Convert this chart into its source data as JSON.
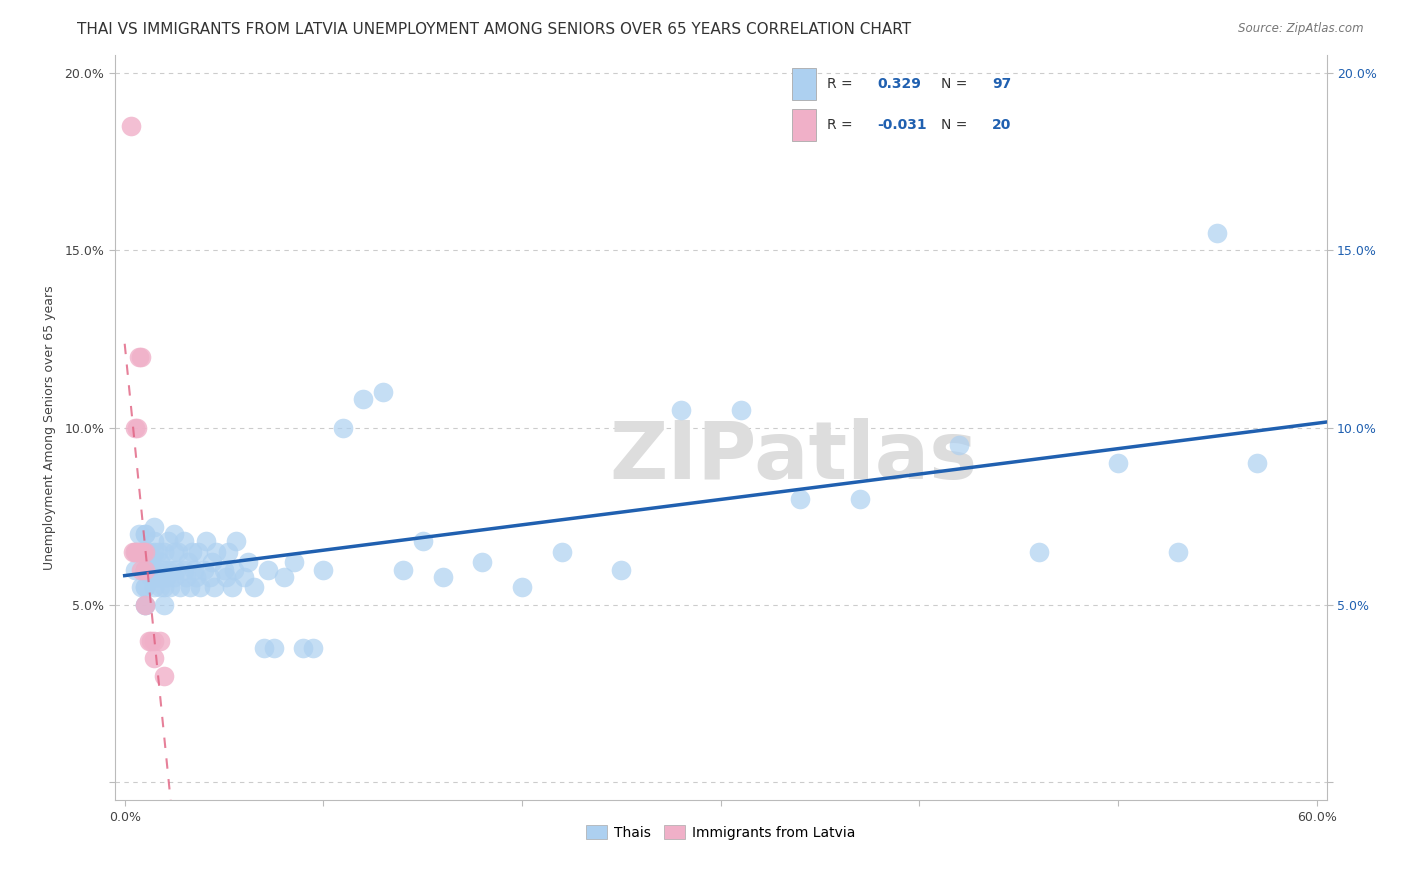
{
  "title": "THAI VS IMMIGRANTS FROM LATVIA UNEMPLOYMENT AMONG SENIORS OVER 65 YEARS CORRELATION CHART",
  "source": "Source: ZipAtlas.com",
  "ylabel": "Unemployment Among Seniors over 65 years",
  "xlim": [
    -0.005,
    0.605
  ],
  "ylim": [
    -0.005,
    0.205
  ],
  "xticks": [
    0.0,
    0.1,
    0.2,
    0.3,
    0.4,
    0.5,
    0.6
  ],
  "yticks": [
    0.0,
    0.05,
    0.1,
    0.15,
    0.2
  ],
  "xtick_labels": [
    "0.0%",
    "",
    "",
    "",
    "",
    "",
    "60.0%"
  ],
  "ytick_labels_left": [
    "",
    "5.0%",
    "10.0%",
    "15.0%",
    "20.0%"
  ],
  "ytick_labels_right": [
    "",
    "5.0%",
    "10.0%",
    "15.0%",
    "20.0%"
  ],
  "thai_R": 0.329,
  "thai_N": 97,
  "latvia_R": -0.031,
  "latvia_N": 20,
  "thai_color": "#add0f0",
  "thai_edge_color": "#7ab0e0",
  "thai_line_color": "#2060b0",
  "latvia_color": "#f0b0c8",
  "latvia_edge_color": "#e080a0",
  "latvia_line_color": "#e06080",
  "background_color": "#ffffff",
  "grid_color": "#cccccc",
  "watermark": "ZIPatlas",
  "title_fontsize": 11,
  "label_fontsize": 9,
  "tick_fontsize": 9,
  "legend_fontsize": 10,
  "thai_x": [
    0.005,
    0.005,
    0.007,
    0.008,
    0.009,
    0.01,
    0.01,
    0.01,
    0.01,
    0.01,
    0.01,
    0.01,
    0.01,
    0.01,
    0.01,
    0.012,
    0.013,
    0.013,
    0.014,
    0.015,
    0.015,
    0.015,
    0.015,
    0.015,
    0.016,
    0.017,
    0.017,
    0.018,
    0.018,
    0.02,
    0.02,
    0.02,
    0.02,
    0.021,
    0.022,
    0.022,
    0.023,
    0.024,
    0.025,
    0.025,
    0.025,
    0.026,
    0.027,
    0.028,
    0.03,
    0.03,
    0.031,
    0.032,
    0.033,
    0.034,
    0.035,
    0.036,
    0.037,
    0.038,
    0.04,
    0.041,
    0.043,
    0.044,
    0.045,
    0.046,
    0.05,
    0.051,
    0.052,
    0.054,
    0.055,
    0.056,
    0.06,
    0.062,
    0.065,
    0.07,
    0.072,
    0.075,
    0.08,
    0.085,
    0.09,
    0.095,
    0.1,
    0.11,
    0.12,
    0.13,
    0.14,
    0.15,
    0.16,
    0.18,
    0.2,
    0.22,
    0.25,
    0.28,
    0.31,
    0.34,
    0.37,
    0.42,
    0.46,
    0.5,
    0.53,
    0.55,
    0.57
  ],
  "thai_y": [
    0.065,
    0.06,
    0.07,
    0.055,
    0.065,
    0.06,
    0.065,
    0.055,
    0.07,
    0.05,
    0.06,
    0.055,
    0.05,
    0.07,
    0.06,
    0.065,
    0.058,
    0.062,
    0.06,
    0.068,
    0.055,
    0.072,
    0.058,
    0.065,
    0.06,
    0.065,
    0.058,
    0.055,
    0.062,
    0.06,
    0.055,
    0.05,
    0.065,
    0.058,
    0.06,
    0.068,
    0.055,
    0.06,
    0.065,
    0.058,
    0.07,
    0.06,
    0.065,
    0.055,
    0.06,
    0.068,
    0.058,
    0.062,
    0.055,
    0.065,
    0.06,
    0.058,
    0.065,
    0.055,
    0.06,
    0.068,
    0.058,
    0.062,
    0.055,
    0.065,
    0.06,
    0.058,
    0.065,
    0.055,
    0.06,
    0.068,
    0.058,
    0.062,
    0.055,
    0.038,
    0.06,
    0.038,
    0.058,
    0.062,
    0.038,
    0.038,
    0.06,
    0.1,
    0.108,
    0.11,
    0.06,
    0.068,
    0.058,
    0.062,
    0.055,
    0.065,
    0.06,
    0.105,
    0.105,
    0.08,
    0.08,
    0.095,
    0.065,
    0.09,
    0.065,
    0.155,
    0.09
  ],
  "latvia_x": [
    0.003,
    0.004,
    0.005,
    0.005,
    0.006,
    0.006,
    0.007,
    0.007,
    0.008,
    0.008,
    0.009,
    0.01,
    0.01,
    0.01,
    0.012,
    0.013,
    0.015,
    0.015,
    0.018,
    0.02
  ],
  "latvia_y": [
    0.185,
    0.065,
    0.065,
    0.1,
    0.1,
    0.065,
    0.065,
    0.12,
    0.12,
    0.06,
    0.065,
    0.065,
    0.06,
    0.05,
    0.04,
    0.04,
    0.04,
    0.035,
    0.04,
    0.03
  ]
}
